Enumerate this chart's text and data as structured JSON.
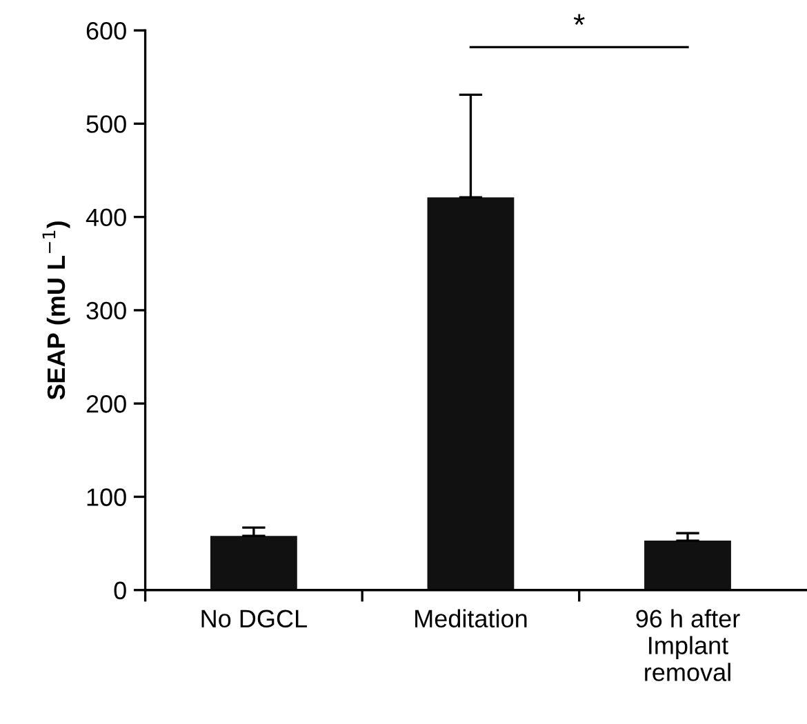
{
  "chart_data": {
    "type": "bar",
    "ylabel": "SEAP (mU L$^{−1}$)",
    "categories": [
      "No DGCL",
      "Meditation",
      "96 h after\nImplant\nremoval"
    ],
    "values": [
      58,
      421,
      53
    ],
    "errors": [
      [
        58,
        67
      ],
      [
        421,
        531
      ],
      [
        53,
        61
      ]
    ],
    "color": "#111111",
    "ylim": [
      0,
      600
    ],
    "yticks": [
      0,
      100,
      200,
      300,
      400,
      500,
      600
    ],
    "grid": false,
    "annotations": [
      "*"
    ]
  }
}
